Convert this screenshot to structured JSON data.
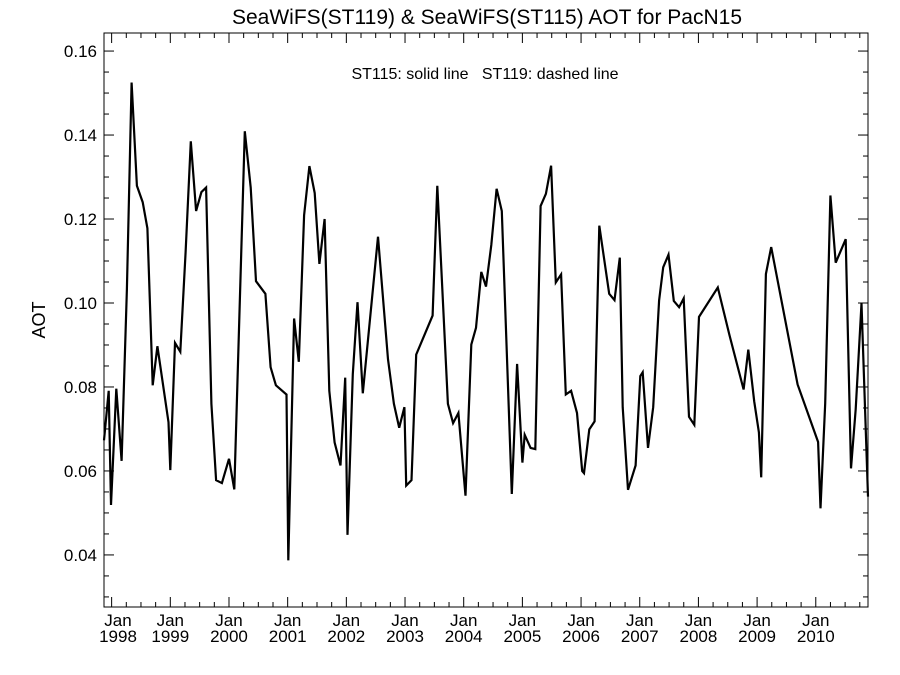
{
  "chart_data": {
    "type": "line",
    "title": "SeaWiFS(ST119) & SeaWiFS(ST115)  AOT for PacN15",
    "annotation": "ST115: solid line   ST119: dashed line",
    "xlabel": "",
    "ylabel": "AOT",
    "xlim": [
      1997.87,
      2010.89
    ],
    "ylim": [
      0.0276,
      0.1643
    ],
    "yticks": [
      "0.04",
      "0.06",
      "0.08",
      "0.10",
      "0.12",
      "0.14",
      "0.16"
    ],
    "xticks": [
      {
        "month": "Jan",
        "year": "1998"
      },
      {
        "month": "Jan",
        "year": "1999"
      },
      {
        "month": "Jan",
        "year": "2000"
      },
      {
        "month": "Jan",
        "year": "2001"
      },
      {
        "month": "Jan",
        "year": "2002"
      },
      {
        "month": "Jan",
        "year": "2003"
      },
      {
        "month": "Jan",
        "year": "2004"
      },
      {
        "month": "Jan",
        "year": "2005"
      },
      {
        "month": "Jan",
        "year": "2006"
      },
      {
        "month": "Jan",
        "year": "2007"
      },
      {
        "month": "Jan",
        "year": "2008"
      },
      {
        "month": "Jan",
        "year": "2009"
      },
      {
        "month": "Jan",
        "year": "2010"
      }
    ],
    "grid": false,
    "series": [
      {
        "name": "ST115",
        "style": "solid",
        "color": "#000000",
        "x": [
          1997.87,
          1997.95,
          1997.99,
          1998.08,
          1998.17,
          1998.26,
          1998.34,
          1998.43,
          1998.53,
          1998.61,
          1998.7,
          1998.78,
          1998.97,
          1999.0,
          1999.08,
          1999.17,
          1999.26,
          1999.35,
          1999.44,
          1999.53,
          1999.61,
          1999.7,
          1999.78,
          1999.88,
          2000.0,
          2000.09,
          2000.27,
          2000.37,
          2000.46,
          2000.62,
          2000.71,
          2000.8,
          2000.98,
          2001.01,
          2001.11,
          2001.19,
          2001.28,
          2001.37,
          2001.46,
          2001.54,
          2001.63,
          2001.71,
          2001.8,
          2001.9,
          2001.98,
          2002.02,
          2002.11,
          2002.19,
          2002.28,
          2002.54,
          2002.71,
          2002.81,
          2002.9,
          2002.99,
          2003.02,
          2003.11,
          2003.19,
          2003.47,
          2003.55,
          2003.73,
          2003.82,
          2003.91,
          2004.03,
          2004.13,
          2004.21,
          2004.3,
          2004.38,
          2004.47,
          2004.56,
          2004.65,
          2004.82,
          2004.91,
          2005.0,
          2005.04,
          2005.14,
          2005.22,
          2005.31,
          2005.4,
          2005.49,
          2005.57,
          2005.66,
          2005.74,
          2005.83,
          2005.93,
          2006.02,
          2006.05,
          2006.14,
          2006.23,
          2006.31,
          2006.48,
          2006.57,
          2006.66,
          2006.71,
          2006.8,
          2006.93,
          2007.01,
          2007.05,
          2007.14,
          2007.23,
          2007.33,
          2007.4,
          2007.49,
          2007.58,
          2007.67,
          2007.75,
          2007.84,
          2007.93,
          2008.01,
          2008.33,
          2008.53,
          2008.77,
          2008.85,
          2008.95,
          2009.03,
          2009.07,
          2009.15,
          2009.24,
          2009.69,
          2010.04,
          2010.08,
          2010.16,
          2010.25,
          2010.34,
          2010.51,
          2010.6,
          2010.68,
          2010.78,
          2010.89
        ],
        "y": [
          0.0673,
          0.0791,
          0.0519,
          0.0796,
          0.0624,
          0.1033,
          0.1525,
          0.1279,
          0.124,
          0.1178,
          0.0804,
          0.0897,
          0.0716,
          0.0602,
          0.0905,
          0.0884,
          0.1121,
          0.1385,
          0.1219,
          0.1264,
          0.1275,
          0.076,
          0.0578,
          0.0571,
          0.0629,
          0.0556,
          0.1409,
          0.1275,
          0.1052,
          0.1022,
          0.0847,
          0.0804,
          0.0782,
          0.0387,
          0.0963,
          0.086,
          0.1209,
          0.1326,
          0.1262,
          0.1093,
          0.12,
          0.0791,
          0.0668,
          0.0613,
          0.0822,
          0.0448,
          0.0831,
          0.1002,
          0.0785,
          0.1158,
          0.0866,
          0.076,
          0.0703,
          0.0752,
          0.0565,
          0.0578,
          0.0877,
          0.097,
          0.1279,
          0.076,
          0.0714,
          0.0738,
          0.0541,
          0.0901,
          0.0941,
          0.1074,
          0.1039,
          0.1138,
          0.1272,
          0.1219,
          0.0545,
          0.0855,
          0.062,
          0.0686,
          0.0655,
          0.0652,
          0.1231,
          0.126,
          0.1327,
          0.1049,
          0.1068,
          0.0782,
          0.0791,
          0.0738,
          0.06,
          0.0595,
          0.0699,
          0.0718,
          0.1184,
          0.1022,
          0.1007,
          0.1108,
          0.0752,
          0.0555,
          0.0613,
          0.0826,
          0.0835,
          0.0655,
          0.0752,
          0.1006,
          0.1085,
          0.1115,
          0.1005,
          0.099,
          0.1011,
          0.0729,
          0.071,
          0.0967,
          0.1037,
          0.0923,
          0.0794,
          0.0889,
          0.0766,
          0.0692,
          0.0585,
          0.1069,
          0.1133,
          0.0806,
          0.0669,
          0.0511,
          0.0761,
          0.1256,
          0.1096,
          0.1152,
          0.0606,
          0.0747,
          0.0999,
          0.0539
        ]
      }
    ]
  }
}
